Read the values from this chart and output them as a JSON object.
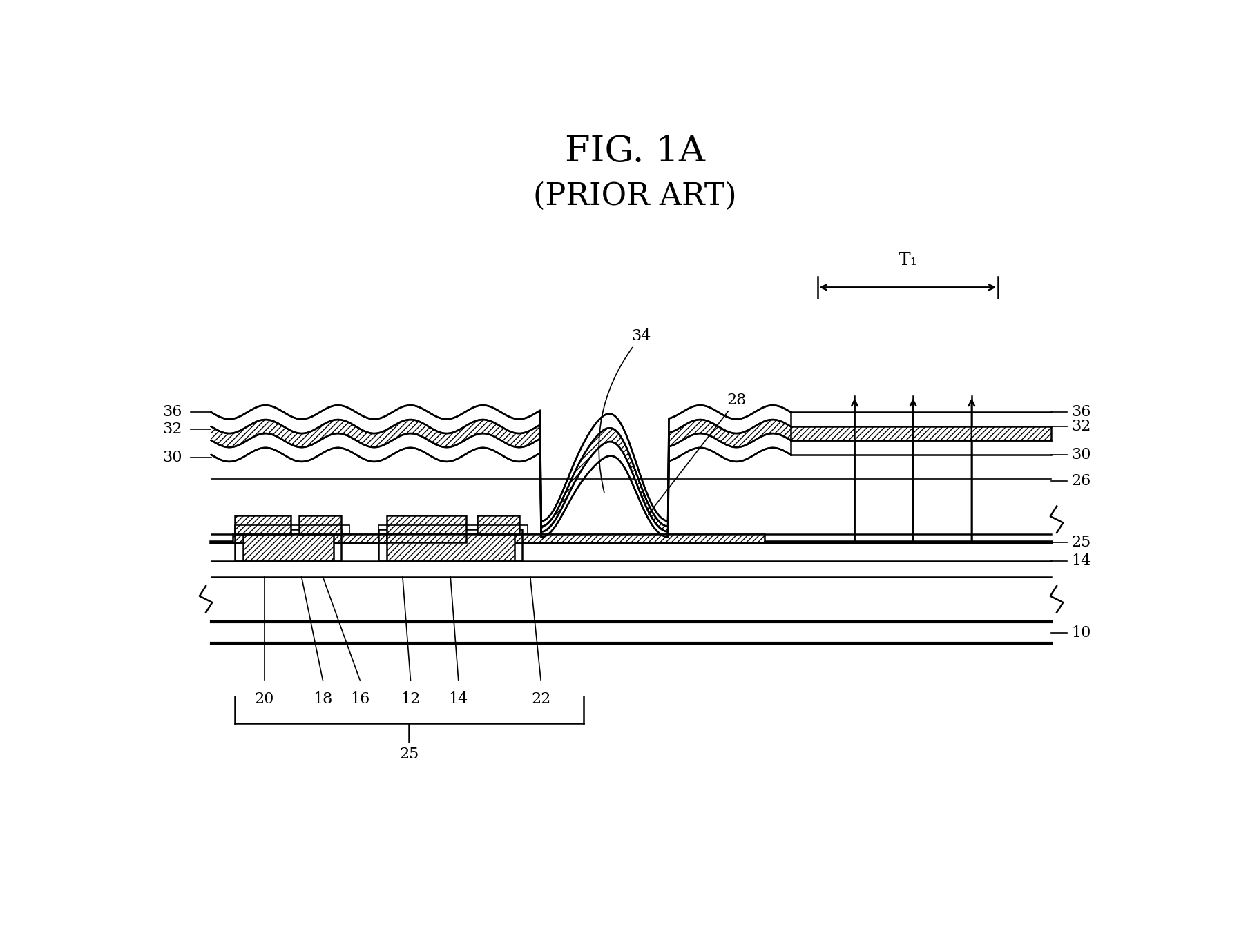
{
  "title_line1": "FIG. 1A",
  "title_line2": "(PRIOR ART)",
  "bg_color": "#ffffff",
  "line_color": "#000000",
  "n_cycles_wave": 8,
  "wave_amp": 0.012,
  "lw_main": 1.8,
  "lw_thick": 3.0,
  "lw_thin": 1.2,
  "label_fontsize": 16,
  "title_fontsize1": 38,
  "title_fontsize2": 32
}
